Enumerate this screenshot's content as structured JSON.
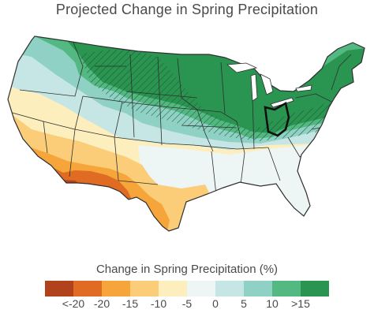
{
  "title": "Projected Change in Spring Precipitation",
  "legend": {
    "title": "Change in Spring Precipitation (%)",
    "bins": [
      {
        "color": "#b0431c"
      },
      {
        "color": "#e06b22"
      },
      {
        "color": "#f6a53a"
      },
      {
        "color": "#fbcd78"
      },
      {
        "color": "#fdeebd"
      },
      {
        "color": "#edf6f4"
      },
      {
        "color": "#c5e6e4"
      },
      {
        "color": "#8fd1c4"
      },
      {
        "color": "#54b883"
      },
      {
        "color": "#2a9550"
      }
    ],
    "ticks": [
      "<-20",
      "-20",
      "-15",
      "-10",
      "-5",
      "0",
      "5",
      "10",
      ">15"
    ]
  },
  "map": {
    "highlighted_state": "Ohio",
    "colors": {
      "background": "#ffffff",
      "state_border": "#2f2f2f",
      "highlight_border": "#111111",
      "hatch": "#1d5a34"
    }
  }
}
